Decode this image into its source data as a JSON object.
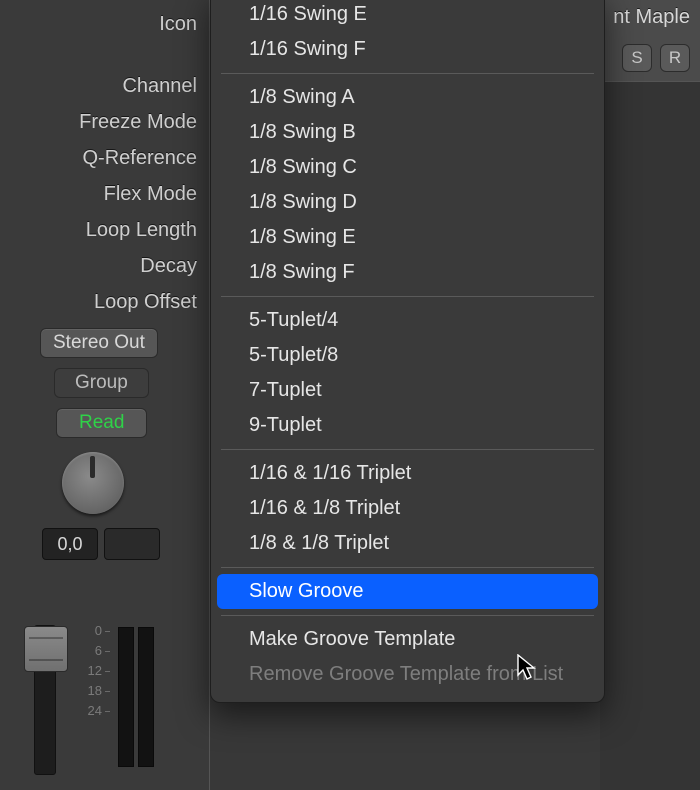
{
  "left_panel": {
    "labels": [
      "Icon",
      "Channel",
      "Freeze Mode",
      "Q-Reference",
      "Flex Mode",
      "Loop Length",
      "Decay",
      "Loop Offset"
    ],
    "stereo_out": "Stereo Out",
    "group": "Group",
    "read": "Read",
    "value_display": "0,0",
    "scale_marks": [
      "0",
      "6",
      "12",
      "18",
      "24"
    ]
  },
  "right_strip": {
    "title_fragment": "nt Maple",
    "solo": "S",
    "record": "R"
  },
  "menu": {
    "groups": [
      {
        "items": [
          "1/16 Swing E",
          "1/16 Swing F"
        ]
      },
      {
        "items": [
          "1/8 Swing A",
          "1/8 Swing B",
          "1/8 Swing C",
          "1/8 Swing D",
          "1/8 Swing E",
          "1/8 Swing F"
        ]
      },
      {
        "items": [
          "5-Tuplet/4",
          "5-Tuplet/8",
          "7-Tuplet",
          "9-Tuplet"
        ]
      },
      {
        "items": [
          "1/16 & 1/16 Triplet",
          "1/16 & 1/8 Triplet",
          "1/8 & 1/8 Triplet"
        ]
      },
      {
        "items": [
          "Slow Groove"
        ],
        "selected_index": 0
      },
      {
        "items": [
          "Make Groove Template",
          "Remove Groove Template from List"
        ],
        "disabled_indices": [
          1
        ]
      }
    ]
  },
  "colors": {
    "menu_bg": "#3a3a3a",
    "selection": "#0a60ff",
    "text": "#e6e6e6",
    "read_green": "#2fd248"
  }
}
